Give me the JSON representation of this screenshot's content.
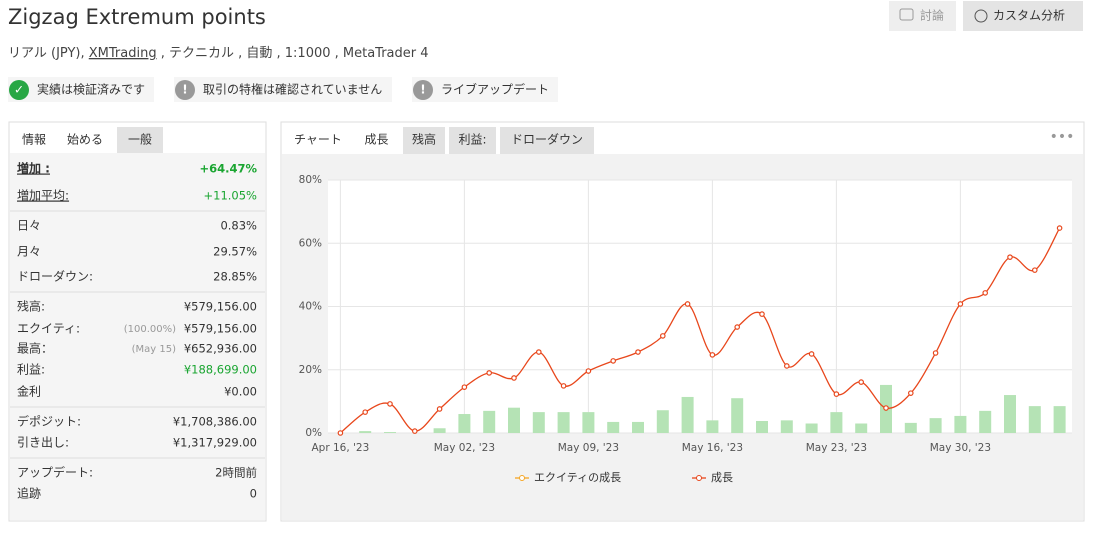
{
  "header": {
    "title": "Zigzag Extremum points",
    "subtitle": {
      "prefix": "リアル (JPY), ",
      "broker": "XMTrading",
      "suffix": " , テクニカル , 自動 , 1:1000 , MetaTrader 4"
    },
    "buttons": [
      "討論",
      "カスタム分析"
    ]
  },
  "badges": [
    {
      "text": "実績は検証済みです",
      "status": "verified"
    },
    {
      "text": "取引の特権は確認されていません",
      "status": "unverified"
    },
    {
      "text": "ライブアップデート",
      "status": "unverified"
    }
  ],
  "stats": {
    "tabs": [
      "情報",
      "始める",
      "一般"
    ],
    "groups": [
      [
        {
          "label": "増加 :",
          "value": "+64.47%"
        },
        {
          "label": "増加平均:",
          "value": "+11.05%"
        }
      ],
      [
        {
          "label": "日々",
          "value": "0.83%"
        },
        {
          "label": "月々",
          "value": "29.57%"
        },
        {
          "label": "ドローダウン:",
          "value": "28.85%"
        }
      ],
      [
        {
          "label": "残高:",
          "value": "¥579,156.00"
        },
        {
          "label": "エクイティ:",
          "note": "(100.00%)",
          "value": "¥579,156.00"
        },
        {
          "label": "最高：",
          "note": "(May 15)",
          "value": "¥652,936.00"
        },
        {
          "label": "利益:",
          "value": "¥188,699.00"
        },
        {
          "label": "金利",
          "value": "¥0.00"
        }
      ],
      [
        {
          "label": "デポジット:",
          "value": "¥1,708,386.00"
        },
        {
          "label": "引き出し:",
          "value": "¥1,317,929.00"
        }
      ],
      [
        {
          "label": "アップデート:",
          "value": "2時間前"
        },
        {
          "label": "追跡",
          "value": "0"
        }
      ]
    ]
  },
  "chart_tabs": [
    "チャート",
    "成長",
    "残高",
    "利益:",
    "ドローダウン"
  ],
  "chart_data": {
    "type": "line",
    "categories": [
      "Apr 16, '23",
      null,
      null,
      null,
      null,
      "May 02, '23",
      null,
      null,
      null,
      null,
      "May 09, '23",
      null,
      null,
      null,
      null,
      "May 16, '23",
      null,
      null,
      null,
      null,
      "May 23, '23",
      null,
      null,
      null,
      null,
      "May 30, '23",
      null,
      null,
      null,
      null
    ],
    "series": [
      {
        "name": "エクイティの成長",
        "color": "#f5a623"
      },
      {
        "name": "成長",
        "color": "#e8471c",
        "values": [
          0,
          6.6,
          9.2,
          0.6,
          7.6,
          14.5,
          19,
          17.4,
          25.6,
          14.9,
          19.6,
          22.8,
          25.6,
          30.7,
          40.8,
          24.7,
          33.5,
          37.6,
          21.2,
          25,
          12.3,
          16.1,
          7.9,
          12.6,
          25.3,
          40.8,
          44.3,
          55.6,
          51.5,
          64.8
        ]
      }
    ],
    "bars": {
      "color": "#b5e3b5",
      "values": [
        null,
        0.6,
        0.3,
        null,
        1.5,
        6,
        7,
        8,
        6.6,
        6.6,
        6.6,
        3.5,
        3.5,
        7.2,
        11.4,
        4,
        11,
        3.8,
        4,
        3,
        6.6,
        3,
        15.2,
        3.2,
        4.7,
        5.4,
        7,
        12,
        8.5,
        8.5
      ]
    },
    "ylim": [
      0,
      80
    ],
    "yticks": [
      {
        "value": 0,
        "label": "0%"
      },
      {
        "value": 20,
        "label": "20%"
      },
      {
        "value": 40,
        "label": "40%"
      },
      {
        "value": 60,
        "label": "60%"
      },
      {
        "value": 80,
        "label": "80%"
      }
    ],
    "grid": true
  }
}
